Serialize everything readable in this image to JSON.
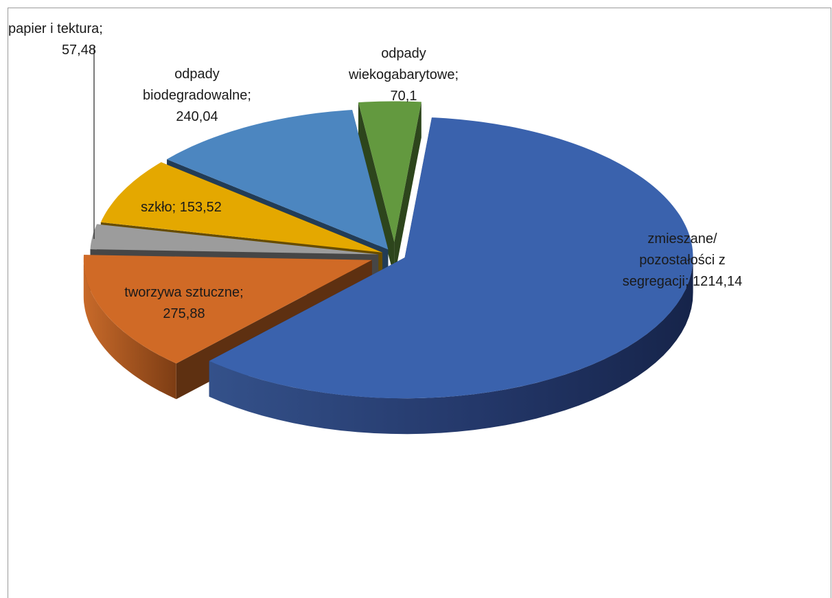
{
  "chart_data": {
    "type": "pie",
    "variant": "3d-exploded",
    "title": "",
    "slices": [
      {
        "label": "zmieszane/ pozostałości z segregacji",
        "value": 1214.14,
        "value_text": "1214,14",
        "color": "#3a62ad",
        "label_lines": [
          "zmieszane/",
          "pozostałości z",
          "segregacji; 1214,14"
        ]
      },
      {
        "label": "tworzywa sztuczne",
        "value": 275.88,
        "value_text": "275,88",
        "color": "#d06a26",
        "label_lines": [
          "tworzywa sztuczne;",
          "275,88"
        ]
      },
      {
        "label": "papier i tektura",
        "value": 57.48,
        "value_text": "57,48",
        "color": "#9c9c9c",
        "label_lines": [
          "papier i tektura;",
          "57,48"
        ]
      },
      {
        "label": "szkło",
        "value": 153.52,
        "value_text": "153,52",
        "color": "#e4a800",
        "label_lines": [
          "szkło; 153,52"
        ]
      },
      {
        "label": "odpady biodegradowalne",
        "value": 240.04,
        "value_text": "240,04",
        "color": "#4c86c0",
        "label_lines": [
          "odpady",
          "biodegradowalne;",
          "240,04"
        ]
      },
      {
        "label": "odpady wiekogabarytowe",
        "value": 70.1,
        "value_text": "70,1",
        "color": "#63993f",
        "label_lines": [
          "odpady",
          "wiekogabarytowe;",
          "70,1"
        ]
      }
    ]
  }
}
